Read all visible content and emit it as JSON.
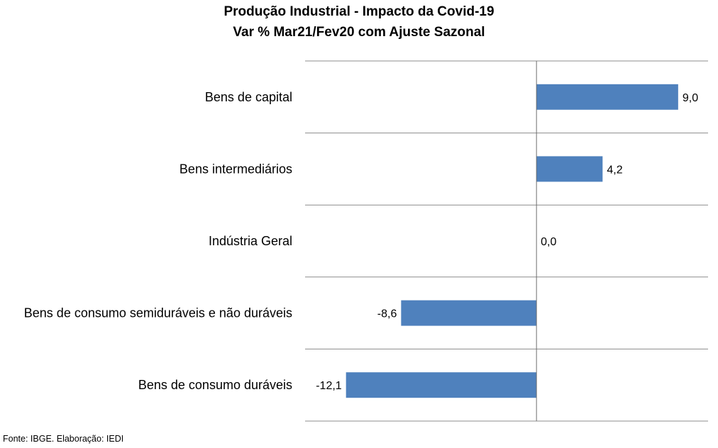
{
  "chart_data": {
    "type": "bar",
    "orientation": "horizontal",
    "title": "Produção Industrial - Impacto da Covid-19",
    "subtitle": "Var % Mar21/Fev20 com Ajuste Sazonal",
    "categories": [
      "Bens de capital",
      "Bens intermediários",
      "Indústria Geral",
      "Bens de consumo semiduráveis e não duráveis",
      "Bens de consumo duráveis"
    ],
    "values": [
      9.0,
      4.2,
      0.0,
      -8.6,
      -12.1
    ],
    "value_labels": [
      "9,0",
      "4,2",
      "0,0",
      "-8,6",
      "-12,1"
    ],
    "xlim": [
      -14.7,
      10.9
    ],
    "grid": true,
    "legend": "none",
    "bar_color": "#4f81bd"
  },
  "footer": {
    "source": "Fonte: IBGE. Elaboração: IEDI"
  }
}
